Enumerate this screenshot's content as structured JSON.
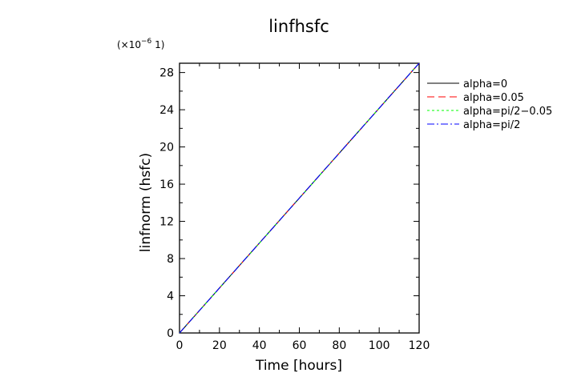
{
  "chart_data": {
    "type": "line",
    "title": "linfhsfc",
    "xlabel": "Time [hours]",
    "ylabel": "linfnorm (hsfc)",
    "y_multiplier_label": "(×10",
    "y_multiplier_exponent": "−6",
    "y_multiplier_unit": " 1)",
    "xlim": [
      0,
      120
    ],
    "ylim": [
      0,
      29
    ],
    "x_ticks": [
      0,
      20,
      40,
      60,
      80,
      100,
      120
    ],
    "y_ticks": [
      0,
      4,
      8,
      12,
      16,
      20,
      24,
      28
    ],
    "x_tick_labels": [
      "0",
      "20",
      "40",
      "60",
      "80",
      "100",
      "120"
    ],
    "y_tick_labels": [
      "0",
      "4",
      "8",
      "12",
      "16",
      "20",
      "24",
      "28"
    ],
    "grid": false,
    "legend_position": "outside-right-top",
    "series": [
      {
        "name": "alpha=0",
        "color": "#000000",
        "dash": "solid",
        "x": [
          0,
          120
        ],
        "y": [
          0,
          29
        ]
      },
      {
        "name": "alpha=0.05",
        "color": "#ff0000",
        "dash": "dashed",
        "x": [
          0,
          120
        ],
        "y": [
          0,
          29
        ]
      },
      {
        "name": "alpha=pi/2−0.05",
        "color": "#00ff00",
        "dash": "dotted",
        "x": [
          0,
          120
        ],
        "y": [
          0,
          29
        ]
      },
      {
        "name": "alpha=pi/2",
        "color": "#0000ff",
        "dash": "dash-dot",
        "x": [
          0,
          120
        ],
        "y": [
          0,
          29
        ]
      }
    ]
  }
}
